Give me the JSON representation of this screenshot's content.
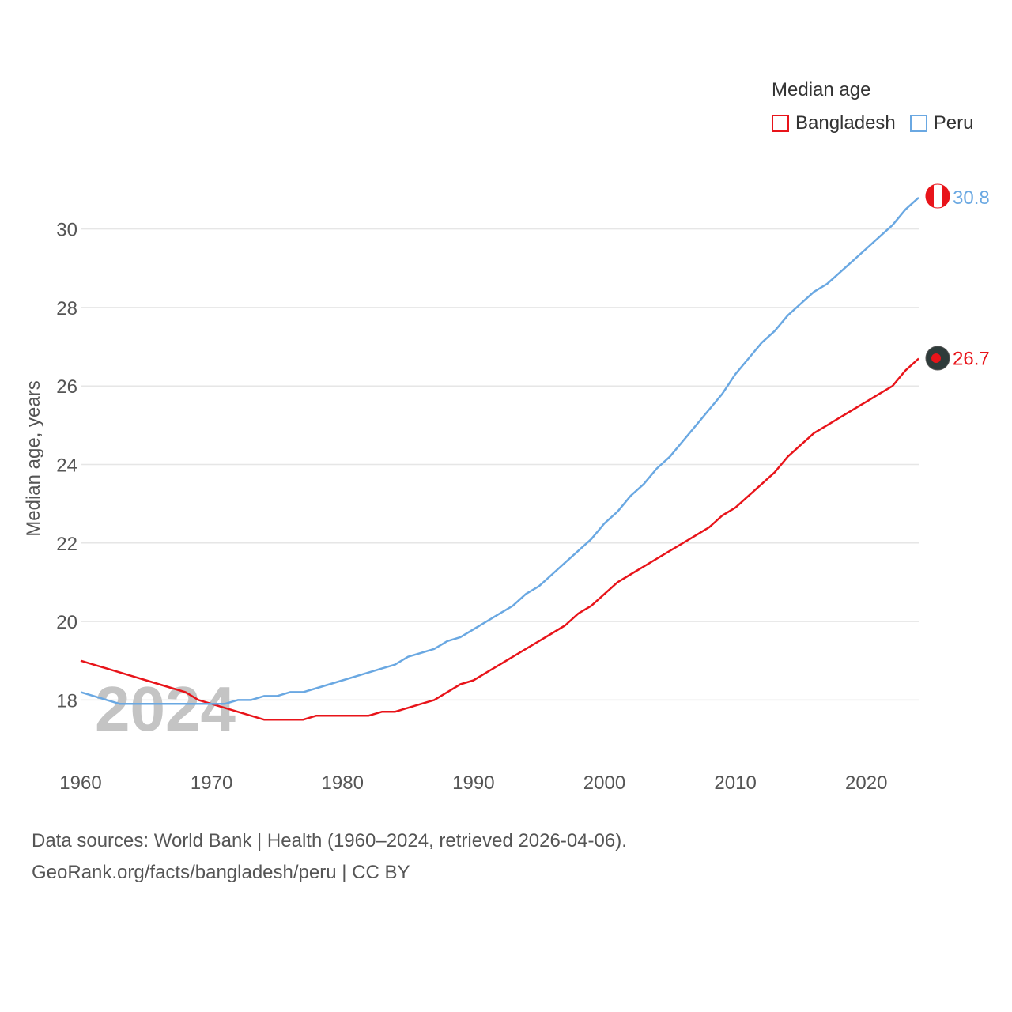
{
  "legend": {
    "title": "Median age",
    "items": [
      {
        "label": "Bangladesh",
        "color": "#e8141a"
      },
      {
        "label": "Peru",
        "color": "#6aa8e2"
      }
    ]
  },
  "footer": {
    "line1": "Data sources: World Bank | Health (1960–2024, retrieved 2026-04-06).",
    "line2": "GeoRank.org/facts/bangladesh/peru | CC BY"
  },
  "chart_data": {
    "type": "line",
    "title": "Median age",
    "xlabel": "",
    "ylabel": "Median age, years",
    "xlim": [
      1960,
      2024
    ],
    "ylim": [
      17,
      31
    ],
    "x_ticks": [
      1960,
      1970,
      1980,
      1990,
      2000,
      2010,
      2020
    ],
    "y_ticks": [
      18,
      20,
      22,
      24,
      26,
      28,
      30
    ],
    "grid": true,
    "legend_position": "top-right",
    "year_label": "2024",
    "x": [
      1960,
      1961,
      1962,
      1963,
      1964,
      1965,
      1966,
      1967,
      1968,
      1969,
      1970,
      1971,
      1972,
      1973,
      1974,
      1975,
      1976,
      1977,
      1978,
      1979,
      1980,
      1981,
      1982,
      1983,
      1984,
      1985,
      1986,
      1987,
      1988,
      1989,
      1990,
      1991,
      1992,
      1993,
      1994,
      1995,
      1996,
      1997,
      1998,
      1999,
      2000,
      2001,
      2002,
      2003,
      2004,
      2005,
      2006,
      2007,
      2008,
      2009,
      2010,
      2011,
      2012,
      2013,
      2014,
      2015,
      2016,
      2017,
      2018,
      2019,
      2020,
      2021,
      2022,
      2023,
      2024
    ],
    "series": [
      {
        "name": "Bangladesh",
        "color": "#e8141a",
        "end_label": "26.7",
        "values": [
          19.0,
          18.9,
          18.8,
          18.7,
          18.6,
          18.5,
          18.4,
          18.3,
          18.2,
          18.0,
          17.9,
          17.8,
          17.7,
          17.6,
          17.5,
          17.5,
          17.5,
          17.5,
          17.6,
          17.6,
          17.6,
          17.6,
          17.6,
          17.7,
          17.7,
          17.8,
          17.9,
          18.0,
          18.2,
          18.4,
          18.5,
          18.7,
          18.9,
          19.1,
          19.3,
          19.5,
          19.7,
          19.9,
          20.2,
          20.4,
          20.7,
          21.0,
          21.2,
          21.4,
          21.6,
          21.8,
          22.0,
          22.2,
          22.4,
          22.7,
          22.9,
          23.2,
          23.5,
          23.8,
          24.2,
          24.5,
          24.8,
          25.0,
          25.2,
          25.4,
          25.6,
          25.8,
          26.0,
          26.4,
          26.7
        ]
      },
      {
        "name": "Peru",
        "color": "#6aa8e2",
        "end_label": "30.8",
        "values": [
          18.2,
          18.1,
          18.0,
          17.9,
          17.9,
          17.9,
          17.9,
          17.9,
          17.9,
          17.9,
          17.9,
          17.9,
          18.0,
          18.0,
          18.1,
          18.1,
          18.2,
          18.2,
          18.3,
          18.4,
          18.5,
          18.6,
          18.7,
          18.8,
          18.9,
          19.1,
          19.2,
          19.3,
          19.5,
          19.6,
          19.8,
          20.0,
          20.2,
          20.4,
          20.7,
          20.9,
          21.2,
          21.5,
          21.8,
          22.1,
          22.5,
          22.8,
          23.2,
          23.5,
          23.9,
          24.2,
          24.6,
          25.0,
          25.4,
          25.8,
          26.3,
          26.7,
          27.1,
          27.4,
          27.8,
          28.1,
          28.4,
          28.6,
          28.9,
          29.2,
          29.5,
          29.8,
          30.1,
          30.5,
          30.8
        ]
      }
    ]
  }
}
